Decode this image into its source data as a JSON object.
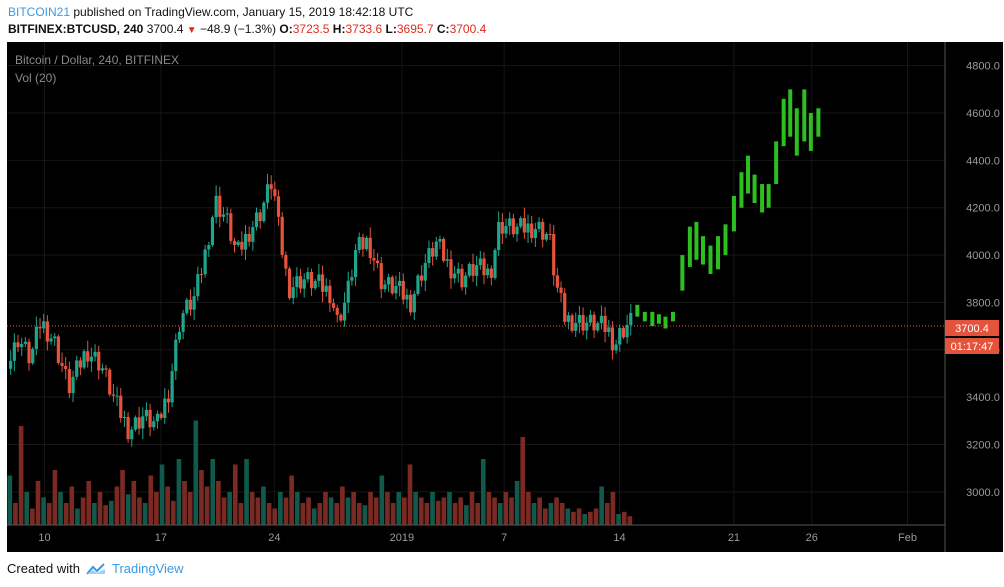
{
  "header": {
    "user": "BITCOIN21",
    "published_text": " published on TradingView.com, January 15, 2019 18:42:18 UTC",
    "symbol": "BITFINEX:BTCUSD, 240",
    "last": "3700.4",
    "change": "−48.9 (−1.3%)",
    "o_label": "O:",
    "o_val": "3723.5",
    "h_label": "H:",
    "h_val": "3733.6",
    "l_label": "L:",
    "l_val": "3695.7",
    "c_label": "C:",
    "c_val": "3700.4"
  },
  "chart": {
    "title": "Bitcoin / Dollar, 240, BITFINEX",
    "vol_label": "Vol (20)",
    "price_tag": "3700.4",
    "countdown": "01:17:47"
  },
  "footer": {
    "created_with": "Created with",
    "brand": "TradingView"
  },
  "colors": {
    "up": "#1ea58a",
    "down": "#e5533d",
    "projection": "#2dbe1f",
    "price_line": "#e5533d"
  },
  "chart_data": {
    "type": "candlestick",
    "ylim": [
      2860,
      4900
    ],
    "y_ticks": [
      3000,
      3200,
      3400,
      3600,
      3800,
      4000,
      4200,
      4400,
      4600,
      4800
    ],
    "x_ticks": [
      {
        "label": "10",
        "pos": 0.04
      },
      {
        "label": "17",
        "pos": 0.164
      },
      {
        "label": "24",
        "pos": 0.285
      },
      {
        "label": "2019",
        "pos": 0.421
      },
      {
        "label": "7",
        "pos": 0.53
      },
      {
        "label": "14",
        "pos": 0.653
      },
      {
        "label": "21",
        "pos": 0.775
      },
      {
        "label": "26",
        "pos": 0.858
      },
      {
        "label": "Feb",
        "pos": 0.96
      }
    ],
    "current_price": 3700.4,
    "price_path": [
      [
        0.0,
        3520
      ],
      [
        0.012,
        3650
      ],
      [
        0.025,
        3560
      ],
      [
        0.036,
        3720
      ],
      [
        0.05,
        3640
      ],
      [
        0.066,
        3440
      ],
      [
        0.085,
        3600
      ],
      [
        0.1,
        3540
      ],
      [
        0.115,
        3380
      ],
      [
        0.13,
        3260
      ],
      [
        0.145,
        3320
      ],
      [
        0.16,
        3280
      ],
      [
        0.172,
        3420
      ],
      [
        0.185,
        3740
      ],
      [
        0.2,
        3820
      ],
      [
        0.21,
        3980
      ],
      [
        0.222,
        4230
      ],
      [
        0.234,
        4150
      ],
      [
        0.245,
        4000
      ],
      [
        0.258,
        4100
      ],
      [
        0.27,
        4180
      ],
      [
        0.283,
        4320
      ],
      [
        0.29,
        4100
      ],
      [
        0.3,
        3860
      ],
      [
        0.315,
        3900
      ],
      [
        0.33,
        3880
      ],
      [
        0.345,
        3840
      ],
      [
        0.352,
        3720
      ],
      [
        0.362,
        3820
      ],
      [
        0.372,
        4020
      ],
      [
        0.385,
        4060
      ],
      [
        0.4,
        3880
      ],
      [
        0.415,
        3860
      ],
      [
        0.43,
        3800
      ],
      [
        0.445,
        3960
      ],
      [
        0.458,
        4050
      ],
      [
        0.47,
        3960
      ],
      [
        0.485,
        3900
      ],
      [
        0.5,
        3950
      ],
      [
        0.515,
        3920
      ],
      [
        0.525,
        4130
      ],
      [
        0.545,
        4110
      ],
      [
        0.565,
        4120
      ],
      [
        0.578,
        4080
      ],
      [
        0.585,
        3880
      ],
      [
        0.595,
        3730
      ],
      [
        0.61,
        3720
      ],
      [
        0.625,
        3710
      ],
      [
        0.64,
        3690
      ],
      [
        0.648,
        3620
      ],
      [
        0.655,
        3680
      ],
      [
        0.665,
        3720
      ]
    ],
    "projection_bars": [
      [
        0.672,
        3740,
        3790
      ],
      [
        0.68,
        3720,
        3760
      ],
      [
        0.688,
        3700,
        3760
      ],
      [
        0.695,
        3710,
        3750
      ],
      [
        0.702,
        3690,
        3740
      ],
      [
        0.71,
        3720,
        3760
      ],
      [
        0.72,
        3850,
        4000
      ],
      [
        0.728,
        3950,
        4120
      ],
      [
        0.735,
        3980,
        4140
      ],
      [
        0.742,
        3960,
        4080
      ],
      [
        0.75,
        3920,
        4040
      ],
      [
        0.758,
        3940,
        4080
      ],
      [
        0.766,
        4000,
        4130
      ],
      [
        0.775,
        4100,
        4250
      ],
      [
        0.783,
        4200,
        4350
      ],
      [
        0.79,
        4260,
        4420
      ],
      [
        0.797,
        4220,
        4340
      ],
      [
        0.805,
        4180,
        4300
      ],
      [
        0.812,
        4200,
        4300
      ],
      [
        0.82,
        4300,
        4480
      ],
      [
        0.828,
        4460,
        4660
      ],
      [
        0.835,
        4500,
        4700
      ],
      [
        0.842,
        4420,
        4620
      ],
      [
        0.85,
        4480,
        4700
      ],
      [
        0.857,
        4440,
        4600
      ],
      [
        0.865,
        4500,
        4620
      ]
    ],
    "series": [
      {
        "name": "Vol (20)",
        "note": "volume bars, relative heights 0-1",
        "values": [
          0.45,
          0.2,
          0.9,
          0.3,
          0.15,
          0.4,
          0.25,
          0.2,
          0.5,
          0.3,
          0.2,
          0.35,
          0.15,
          0.25,
          0.4,
          0.2,
          0.3,
          0.18,
          0.22,
          0.35,
          0.5,
          0.28,
          0.4,
          0.25,
          0.2,
          0.45,
          0.3,
          0.55,
          0.35,
          0.22,
          0.6,
          0.4,
          0.3,
          0.95,
          0.5,
          0.35,
          0.6,
          0.4,
          0.25,
          0.3,
          0.55,
          0.2,
          0.6,
          0.3,
          0.25,
          0.35,
          0.2,
          0.15,
          0.3,
          0.25,
          0.45,
          0.3,
          0.2,
          0.25,
          0.15,
          0.2,
          0.3,
          0.25,
          0.2,
          0.35,
          0.25,
          0.3,
          0.2,
          0.18,
          0.3,
          0.25,
          0.45,
          0.3,
          0.2,
          0.3,
          0.25,
          0.55,
          0.3,
          0.25,
          0.2,
          0.3,
          0.22,
          0.25,
          0.3,
          0.2,
          0.25,
          0.18,
          0.3,
          0.2,
          0.6,
          0.3,
          0.25,
          0.2,
          0.3,
          0.25,
          0.4,
          0.8,
          0.3,
          0.2,
          0.25,
          0.15,
          0.2,
          0.25,
          0.2,
          0.15,
          0.12,
          0.15,
          0.1,
          0.12,
          0.15,
          0.35,
          0.2,
          0.3,
          0.1,
          0.12,
          0.08
        ]
      }
    ]
  }
}
